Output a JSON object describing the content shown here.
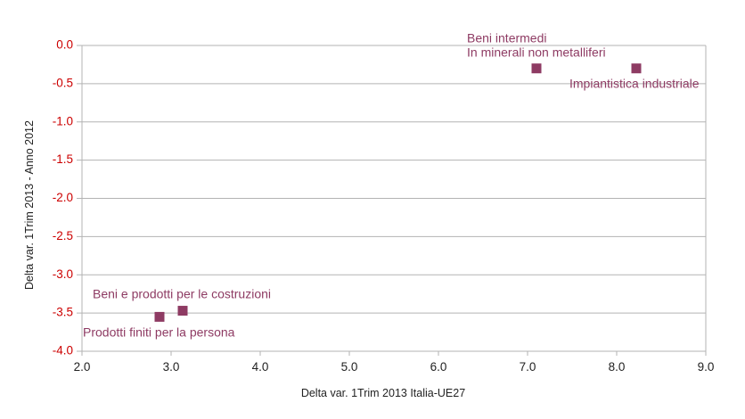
{
  "chart_data": {
    "type": "scatter",
    "title": "",
    "xlabel": "Delta var. 1Trim 2013 Italia-UE27",
    "ylabel": "Delta var. 1Trim 2013 - Anno 2012",
    "xlim": [
      2.0,
      9.0
    ],
    "ylim": [
      -4.0,
      0.0
    ],
    "xticks": [
      "2.0",
      "3.0",
      "4.0",
      "5.0",
      "6.0",
      "7.0",
      "8.0",
      "9.0"
    ],
    "yticks": [
      "0.0",
      "-0.5",
      "-1.0",
      "-1.5",
      "-2.0",
      "-2.5",
      "-3.0",
      "-3.5",
      "-4.0"
    ],
    "grid": "horizontal",
    "legend": "none",
    "points": [
      {
        "x": 7.1,
        "y": -0.3,
        "label": [
          "Beni intermedi",
          "In minerali non metalliferi"
        ],
        "label_position": "above-left"
      },
      {
        "x": 8.22,
        "y": -0.3,
        "label": [
          "Impiantistica industriale"
        ],
        "label_position": "below"
      },
      {
        "x": 3.13,
        "y": -3.47,
        "label": [
          "Beni e prodotti per le costruzioni"
        ],
        "label_position": "above"
      },
      {
        "x": 2.87,
        "y": -3.55,
        "label": [
          "Prodotti finiti per la persona"
        ],
        "label_position": "below"
      }
    ],
    "colors": {
      "marker": "#8e3b63",
      "label": "#8e3b63",
      "y_tick": "#cc0000",
      "x_tick": "#222222",
      "grid": "#b3b3b3"
    }
  }
}
